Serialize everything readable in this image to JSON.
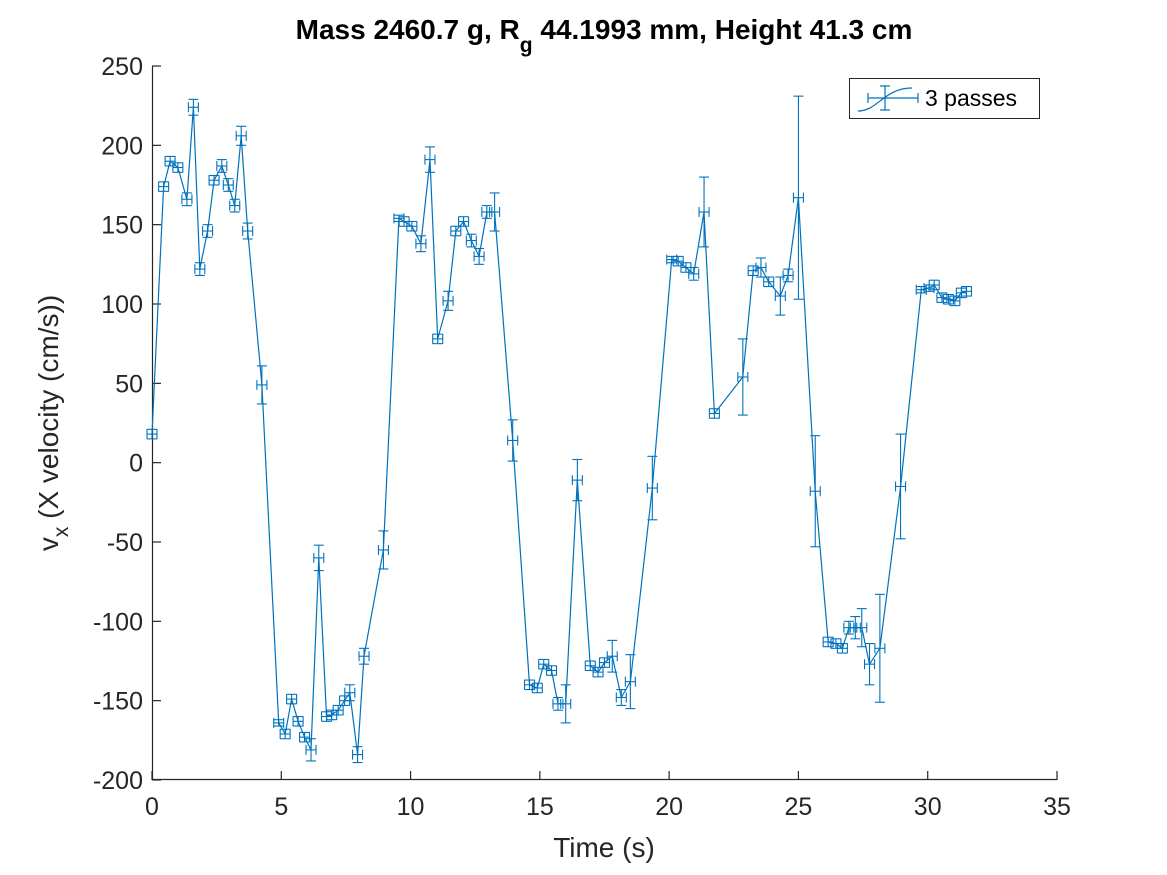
{
  "chart_data": {
    "type": "line",
    "title": {
      "main": "Mass 2460.7 g, R",
      "sub": "g",
      "tail": " 44.1993 mm,  Height 41.3 cm"
    },
    "xlabel": "Time (s)",
    "ylabel": {
      "base": "v",
      "sub": "x",
      "tail": " (X velocity (cm/s))"
    },
    "xlim": [
      0,
      35
    ],
    "ylim": [
      -200,
      250
    ],
    "xticks": [
      0,
      5,
      10,
      15,
      20,
      25,
      30,
      35
    ],
    "yticks": [
      -200,
      -150,
      -100,
      -50,
      0,
      50,
      100,
      150,
      200,
      250
    ],
    "grid": false,
    "legend_position": "top-right",
    "colors": {
      "series": "#0072bd",
      "axis": "#262626"
    },
    "series": [
      {
        "name": "3 passes",
        "points": [
          {
            "x": 0.0,
            "y": 18,
            "err": 3
          },
          {
            "x": 0.45,
            "y": 174,
            "err": 3
          },
          {
            "x": 0.7,
            "y": 190,
            "err": 3
          },
          {
            "x": 1.0,
            "y": 186,
            "err": 3
          },
          {
            "x": 1.35,
            "y": 166,
            "err": 4
          },
          {
            "x": 1.6,
            "y": 224,
            "err": 5
          },
          {
            "x": 1.85,
            "y": 122,
            "err": 4
          },
          {
            "x": 2.15,
            "y": 146,
            "err": 4
          },
          {
            "x": 2.4,
            "y": 178,
            "err": 3
          },
          {
            "x": 2.7,
            "y": 187,
            "err": 4
          },
          {
            "x": 2.95,
            "y": 175,
            "err": 4
          },
          {
            "x": 3.2,
            "y": 162,
            "err": 4
          },
          {
            "x": 3.45,
            "y": 206,
            "err": 6
          },
          {
            "x": 3.7,
            "y": 146,
            "err": 5
          },
          {
            "x": 4.25,
            "y": 49,
            "err": 12
          },
          {
            "x": 4.9,
            "y": -164,
            "err": 2
          },
          {
            "x": 5.15,
            "y": -171,
            "err": 3
          },
          {
            "x": 5.4,
            "y": -149,
            "err": 3
          },
          {
            "x": 5.65,
            "y": -163,
            "err": 3
          },
          {
            "x": 5.9,
            "y": -173,
            "err": 3
          },
          {
            "x": 6.15,
            "y": -181,
            "err": 7
          },
          {
            "x": 6.45,
            "y": -60,
            "err": 8
          },
          {
            "x": 6.75,
            "y": -160,
            "err": 3
          },
          {
            "x": 6.95,
            "y": -159,
            "err": 3
          },
          {
            "x": 7.2,
            "y": -156,
            "err": 3
          },
          {
            "x": 7.45,
            "y": -150,
            "err": 3
          },
          {
            "x": 7.65,
            "y": -145,
            "err": 5
          },
          {
            "x": 7.95,
            "y": -184,
            "err": 5
          },
          {
            "x": 8.2,
            "y": -122,
            "err": 5
          },
          {
            "x": 8.95,
            "y": -55,
            "err": 12
          },
          {
            "x": 9.55,
            "y": 154,
            "err": 2
          },
          {
            "x": 9.75,
            "y": 152,
            "err": 3
          },
          {
            "x": 10.05,
            "y": 149,
            "err": 3
          },
          {
            "x": 10.4,
            "y": 138,
            "err": 5
          },
          {
            "x": 10.75,
            "y": 191,
            "err": 8
          },
          {
            "x": 11.05,
            "y": 78,
            "err": 3
          },
          {
            "x": 11.45,
            "y": 102,
            "err": 6
          },
          {
            "x": 11.75,
            "y": 146,
            "err": 3
          },
          {
            "x": 12.05,
            "y": 152,
            "err": 3
          },
          {
            "x": 12.35,
            "y": 140,
            "err": 4
          },
          {
            "x": 12.65,
            "y": 130,
            "err": 5
          },
          {
            "x": 12.95,
            "y": 158,
            "err": 4
          },
          {
            "x": 13.25,
            "y": 158,
            "err": 12
          },
          {
            "x": 13.95,
            "y": 14,
            "err": 13
          },
          {
            "x": 14.6,
            "y": -140,
            "err": 3
          },
          {
            "x": 14.9,
            "y": -142,
            "err": 3
          },
          {
            "x": 15.15,
            "y": -127,
            "err": 3
          },
          {
            "x": 15.45,
            "y": -131,
            "err": 3
          },
          {
            "x": 15.7,
            "y": -152,
            "err": 4
          },
          {
            "x": 16.0,
            "y": -152,
            "err": 12
          },
          {
            "x": 16.45,
            "y": -11,
            "err": 13
          },
          {
            "x": 16.95,
            "y": -128,
            "err": 3
          },
          {
            "x": 17.25,
            "y": -132,
            "err": 3
          },
          {
            "x": 17.5,
            "y": -126,
            "err": 3
          },
          {
            "x": 17.8,
            "y": -122,
            "err": 10
          },
          {
            "x": 18.15,
            "y": -148,
            "err": 5
          },
          {
            "x": 18.5,
            "y": -138,
            "err": 17
          },
          {
            "x": 19.35,
            "y": -16,
            "err": 20
          },
          {
            "x": 20.1,
            "y": 128,
            "err": 2
          },
          {
            "x": 20.35,
            "y": 127,
            "err": 3
          },
          {
            "x": 20.65,
            "y": 123,
            "err": 3
          },
          {
            "x": 20.95,
            "y": 119,
            "err": 4
          },
          {
            "x": 21.35,
            "y": 158,
            "err": 22
          },
          {
            "x": 21.75,
            "y": 31,
            "err": 3
          },
          {
            "x": 22.85,
            "y": 54,
            "err": 24
          },
          {
            "x": 23.25,
            "y": 121,
            "err": 3
          },
          {
            "x": 23.55,
            "y": 123,
            "err": 6
          },
          {
            "x": 23.85,
            "y": 114,
            "err": 3
          },
          {
            "x": 24.3,
            "y": 105,
            "err": 12
          },
          {
            "x": 24.6,
            "y": 118,
            "err": 4
          },
          {
            "x": 25.0,
            "y": 167,
            "err": 64
          },
          {
            "x": 25.65,
            "y": -18,
            "err": 35
          },
          {
            "x": 26.15,
            "y": -113,
            "err": 3
          },
          {
            "x": 26.45,
            "y": -114,
            "err": 3
          },
          {
            "x": 26.7,
            "y": -117,
            "err": 3
          },
          {
            "x": 26.95,
            "y": -104,
            "err": 4
          },
          {
            "x": 27.2,
            "y": -104,
            "err": 7
          },
          {
            "x": 27.45,
            "y": -104,
            "err": 12
          },
          {
            "x": 27.75,
            "y": -127,
            "err": 13
          },
          {
            "x": 28.15,
            "y": -117,
            "err": 34
          },
          {
            "x": 28.95,
            "y": -15,
            "err": 33
          },
          {
            "x": 29.75,
            "y": 109,
            "err": 2
          },
          {
            "x": 30.05,
            "y": 110,
            "err": 2
          },
          {
            "x": 30.25,
            "y": 112,
            "err": 3
          },
          {
            "x": 30.55,
            "y": 104,
            "err": 3
          },
          {
            "x": 30.8,
            "y": 103,
            "err": 3
          },
          {
            "x": 31.05,
            "y": 102,
            "err": 3
          },
          {
            "x": 31.3,
            "y": 107,
            "err": 3
          },
          {
            "x": 31.5,
            "y": 108,
            "err": 3
          }
        ]
      }
    ]
  }
}
